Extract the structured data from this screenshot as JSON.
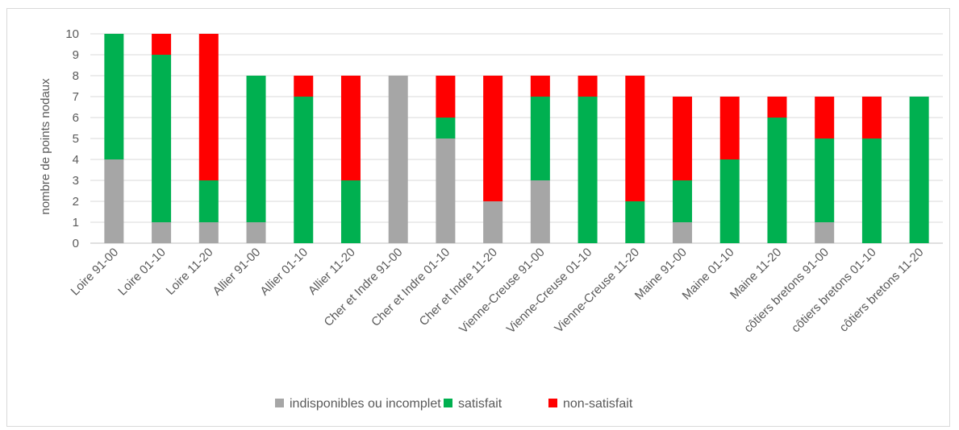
{
  "chart_data": {
    "type": "bar",
    "stacked": true,
    "ylabel": "nombre de points nodaux",
    "ylim": [
      0,
      10
    ],
    "yticks": [
      0,
      1,
      2,
      3,
      4,
      5,
      6,
      7,
      8,
      9,
      10
    ],
    "grid": true,
    "legend_position": "bottom",
    "categories": [
      "Loire 91-00",
      "Loire 01-10",
      "Loire 11-20",
      "Allier 91-00",
      "Allier 01-10",
      "Allier 11-20",
      "Cher et Indre 91-00",
      "Cher et Indre 01-10",
      "Cher et Indre 11-20",
      "Vienne-Creuse 91-00",
      "Vienne-Creuse 01-10",
      "Vienne-Creuse 11-20",
      "Maine 91-00",
      "Maine 01-10",
      "Maine 11-20",
      "côtiers bretons 91-00",
      "côtiers bretons 01-10",
      "côtiers bretons 11-20"
    ],
    "series": [
      {
        "name": "indisponibles ou incomplet",
        "color": "#a6a6a6",
        "values": [
          4,
          1,
          1,
          1,
          0,
          0,
          8,
          5,
          2,
          3,
          0,
          0,
          1,
          0,
          0,
          1,
          0,
          0
        ]
      },
      {
        "name": "satisfait",
        "color": "#00b050",
        "values": [
          6,
          8,
          2,
          7,
          7,
          3,
          0,
          1,
          0,
          4,
          7,
          2,
          2,
          4,
          6,
          4,
          5,
          7
        ]
      },
      {
        "name": "non-satisfait",
        "color": "#ff0000",
        "values": [
          0,
          1,
          7,
          0,
          1,
          5,
          0,
          2,
          6,
          1,
          1,
          6,
          4,
          3,
          1,
          2,
          2,
          0
        ]
      }
    ]
  }
}
